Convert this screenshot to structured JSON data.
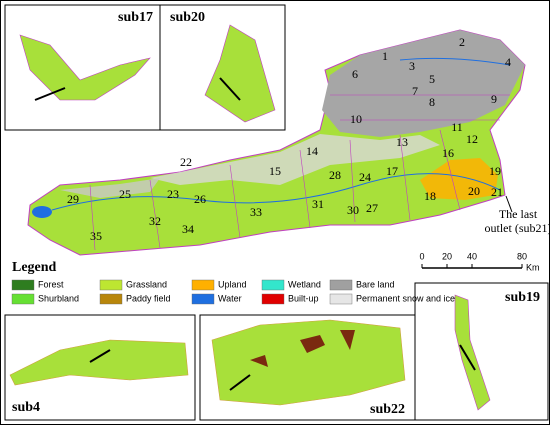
{
  "insets": [
    {
      "label": "sub17"
    },
    {
      "label": "sub20"
    },
    {
      "label": "sub4"
    },
    {
      "label": "sub22"
    },
    {
      "label": "sub19"
    }
  ],
  "subbasins": [
    "1",
    "2",
    "3",
    "4",
    "5",
    "6",
    "7",
    "8",
    "9",
    "10",
    "11",
    "12",
    "13",
    "14",
    "15",
    "16",
    "17",
    "18",
    "19",
    "20",
    "21",
    "22",
    "23",
    "24",
    "25",
    "26",
    "27",
    "28",
    "29",
    "30",
    "31",
    "32",
    "33",
    "34",
    "35"
  ],
  "outlet_note": [
    "The last",
    "outlet (sub21)"
  ],
  "legend": {
    "title": "Legend",
    "items": [
      {
        "name": "Forest",
        "color": "#2e7d1f"
      },
      {
        "name": "Grassland",
        "color": "#bde631"
      },
      {
        "name": "Upland",
        "color": "#ffb000"
      },
      {
        "name": "Wetland",
        "color": "#33e6cc"
      },
      {
        "name": "Bare land",
        "color": "#a0a0a0"
      },
      {
        "name": "Shurbland",
        "color": "#66e033"
      },
      {
        "name": "Paddy field",
        "color": "#b8860b"
      },
      {
        "name": "Water",
        "color": "#1f6fe0"
      },
      {
        "name": "Built-up",
        "color": "#e00000"
      },
      {
        "name": "Permanent snow and ice",
        "color": "#e6e6e6"
      }
    ]
  },
  "scale": {
    "ticks": [
      0,
      20,
      40,
      80
    ],
    "unit": "Km"
  }
}
